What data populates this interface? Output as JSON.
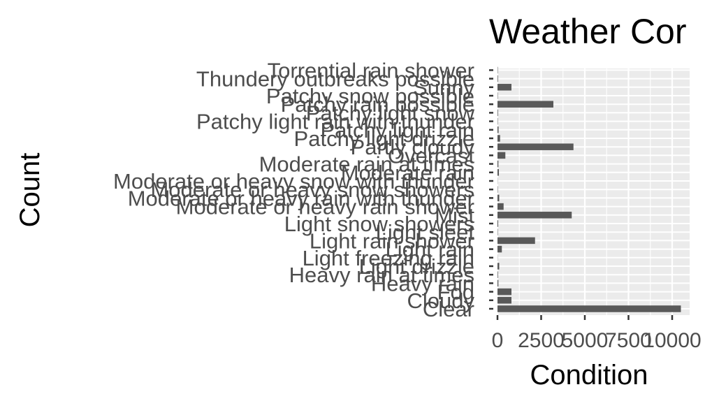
{
  "chart_data": {
    "type": "bar",
    "orientation": "horizontal",
    "title": "Weather Cor",
    "xlabel": "Condition",
    "ylabel": "Count",
    "xlim": [
      0,
      11000
    ],
    "x_ticks": [
      0,
      2500,
      5000,
      7500,
      10000
    ],
    "x_tick_labels": [
      "0",
      "2500",
      "5000",
      "7500",
      "10000"
    ],
    "grid": true,
    "legend": "none",
    "bar_color": "#595959",
    "panel_color": "#ebebeb",
    "categories": [
      "Clear",
      "Cloudy",
      "Fog",
      "Heavy rain",
      "Heavy rain at times",
      "Light drizzle",
      "Light freezing rain",
      "Light rain",
      "Light rain shower",
      "Light sleet",
      "Light snow showers",
      "Mist",
      "Moderate or heavy rain shower",
      "Moderate or heavy rain with thunder",
      "Moderate or heavy snow showers",
      "Moderate or heavy snow with thunder",
      "Moderate rain",
      "Moderate rain at times",
      "Overcast",
      "Partly cloudy",
      "Patchy light drizzle",
      "Patchy light rain",
      "Patchy light rain with thunder",
      "Patchy light snow",
      "Patchy rain possible",
      "Patchy snow possible",
      "Sunny",
      "Thundery outbreaks possible",
      "Torrential rain shower"
    ],
    "values": [
      10500,
      800,
      800,
      50,
      30,
      100,
      10,
      250,
      2150,
      20,
      40,
      4250,
      350,
      100,
      20,
      10,
      80,
      50,
      450,
      4350,
      150,
      60,
      20,
      30,
      3200,
      20,
      800,
      30,
      20
    ]
  }
}
